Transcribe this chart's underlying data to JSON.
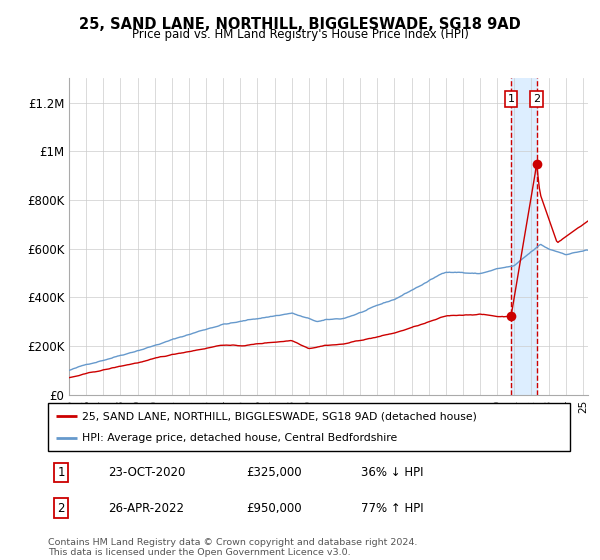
{
  "title": "25, SAND LANE, NORTHILL, BIGGLESWADE, SG18 9AD",
  "subtitle": "Price paid vs. HM Land Registry's House Price Index (HPI)",
  "legend_label_red": "25, SAND LANE, NORTHILL, BIGGLESWADE, SG18 9AD (detached house)",
  "legend_label_blue": "HPI: Average price, detached house, Central Bedfordshire",
  "annotation1_date": "23-OCT-2020",
  "annotation1_price": 325000,
  "annotation1_pct": "36% ↓ HPI",
  "annotation1_year": 2020.8,
  "annotation2_date": "26-APR-2022",
  "annotation2_price": 950000,
  "annotation2_pct": "77% ↑ HPI",
  "annotation2_year": 2022.3,
  "footer": "Contains HM Land Registry data © Crown copyright and database right 2024.\nThis data is licensed under the Open Government Licence v3.0.",
  "red_color": "#cc0000",
  "blue_color": "#6699cc",
  "dashed_color": "#cc0000",
  "highlight_color": "#ddeeff",
  "grid_color": "#cccccc",
  "background_color": "#ffffff",
  "ylim_max": 1300000,
  "yticks": [
    0,
    200000,
    400000,
    600000,
    800000,
    1000000,
    1200000
  ],
  "ylabels": [
    "£0",
    "£200K",
    "£400K",
    "£600K",
    "£800K",
    "£1M",
    "£1.2M"
  ],
  "xlim_start": 1995,
  "xlim_end": 2025.3
}
